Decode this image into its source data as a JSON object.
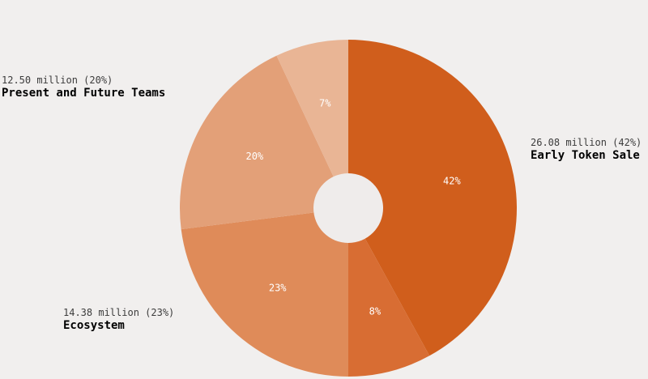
{
  "chart_data": {
    "type": "pie",
    "start_angle_deg": 0,
    "direction": "clockwise",
    "slices": [
      {
        "name": "Early Token Sale",
        "value": 42,
        "amount": "26.08 million (42%)",
        "pct_label": "42%",
        "color": "#d05e1c",
        "callout": true
      },
      {
        "name": "",
        "value": 8,
        "amount": "",
        "pct_label": "8%",
        "color": "#d86d33",
        "callout": false
      },
      {
        "name": "Ecosystem",
        "value": 23,
        "amount": "14.38 million (23%)",
        "pct_label": "23%",
        "color": "#df8b59",
        "callout": true
      },
      {
        "name": "Present and Future Teams",
        "value": 20,
        "amount": "12.50 million (20%)",
        "pct_label": "20%",
        "color": "#e3a078",
        "callout": true
      },
      {
        "name": "",
        "value": 7,
        "amount": "",
        "pct_label": "7%",
        "color": "#e9b595",
        "callout": false
      }
    ],
    "hole_color": "#efeceb",
    "background": "#f1efee"
  }
}
